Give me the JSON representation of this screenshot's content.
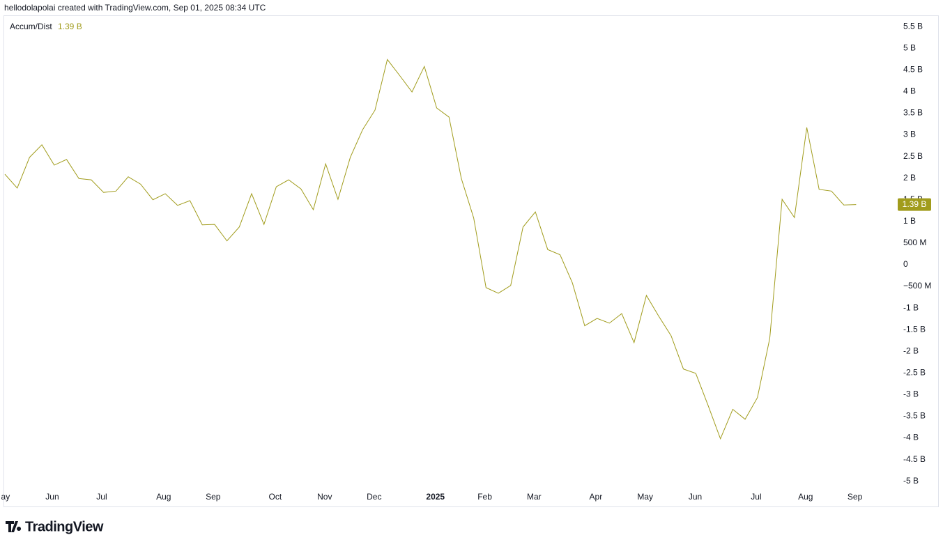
{
  "header": "hellodolapolai created with TradingView.com, Sep 01, 2025 08:34 UTC",
  "footer": {
    "logo": "TradingView"
  },
  "chart_data": {
    "type": "line",
    "series": [
      {
        "name": "Accum/Dist",
        "color": "#a19c1c",
        "values": [
          2.09,
          1.77,
          2.48,
          2.77,
          2.3,
          2.43,
          1.99,
          1.96,
          1.67,
          1.7,
          2.03,
          1.86,
          1.5,
          1.64,
          1.37,
          1.48,
          0.92,
          0.93,
          0.55,
          0.87,
          1.64,
          0.93,
          1.8,
          1.96,
          1.75,
          1.27,
          2.33,
          1.51,
          2.48,
          3.12,
          3.57,
          4.74,
          4.37,
          3.99,
          4.58,
          3.62,
          3.41,
          1.99,
          1.08,
          -0.53,
          -0.66,
          -0.48,
          0.87,
          1.22,
          0.35,
          0.23,
          -0.42,
          -1.41,
          -1.24,
          -1.35,
          -1.13,
          -1.8,
          -0.71,
          -1.19,
          -1.64,
          -2.41,
          -2.51,
          -3.25,
          -4.02,
          -3.34,
          -3.57,
          -3.07,
          -1.7,
          1.51,
          1.09,
          3.17,
          1.74,
          1.7,
          1.38,
          1.39
        ],
        "value_labels": [
          null,
          null,
          null,
          null,
          null,
          null,
          null,
          null,
          null,
          null,
          null,
          null,
          null,
          null,
          null,
          null,
          null,
          null,
          null,
          null,
          null,
          null,
          null,
          null,
          null,
          null,
          null,
          null,
          null,
          null,
          null,
          null,
          null,
          null,
          null,
          null,
          null,
          null,
          null,
          null,
          null,
          null,
          null,
          null,
          null,
          null,
          null,
          null,
          null,
          null,
          null,
          null,
          null,
          null,
          null,
          null,
          null,
          null,
          null,
          null,
          null,
          null,
          null,
          null,
          null,
          null,
          null,
          null,
          null,
          "1.39 B"
        ]
      }
    ],
    "xlim": [
      0,
      72.2
    ],
    "xticks": [
      {
        "value": 0.05,
        "label": "ay"
      },
      {
        "value": 3.84,
        "label": "Jun"
      },
      {
        "value": 7.85,
        "label": "Jul"
      },
      {
        "value": 12.87,
        "label": "Aug"
      },
      {
        "value": 16.88,
        "label": "Sep"
      },
      {
        "value": 21.91,
        "label": "Oct"
      },
      {
        "value": 25.92,
        "label": "Nov"
      },
      {
        "value": 29.93,
        "label": "Dec"
      },
      {
        "value": 34.9,
        "label": "2025"
      },
      {
        "value": 38.9,
        "label": "Feb"
      },
      {
        "value": 42.9,
        "label": "Mar"
      },
      {
        "value": 47.9,
        "label": "Apr"
      },
      {
        "value": 51.9,
        "label": "May"
      },
      {
        "value": 55.96,
        "label": "Jun"
      },
      {
        "value": 60.9,
        "label": "Jul"
      },
      {
        "value": 64.9,
        "label": "Aug"
      },
      {
        "value": 68.9,
        "label": "Sep"
      }
    ],
    "ylim": [
      -5.15,
      5.76
    ],
    "yticks": [
      {
        "value": 5.5,
        "label": "5.5 B"
      },
      {
        "value": 5,
        "label": "5 B"
      },
      {
        "value": 4.5,
        "label": "4.5 B"
      },
      {
        "value": 4,
        "label": "4 B"
      },
      {
        "value": 3.5,
        "label": "3.5 B"
      },
      {
        "value": 3,
        "label": "3 B"
      },
      {
        "value": 2.5,
        "label": "2.5 B"
      },
      {
        "value": 2,
        "label": "2 B"
      },
      {
        "value": 1.5,
        "label": "1.5 B"
      },
      {
        "value": 1,
        "label": "1 B"
      },
      {
        "value": 0.5,
        "label": "500 M"
      },
      0,
      {
        "value": -0.5,
        "label": "−500 M"
      },
      {
        "value": -1,
        "label": "-1 B"
      },
      {
        "value": -1.5,
        "label": "-1.5 B"
      },
      {
        "value": -2,
        "label": "-2 B"
      },
      {
        "value": -2.5,
        "label": "-2.5 B"
      },
      {
        "value": -3,
        "label": "-3 B"
      },
      {
        "value": -3.5,
        "label": "-3.5 B"
      },
      {
        "value": -4,
        "label": "-4 B"
      },
      {
        "value": -4.5,
        "label": "-4.5 B"
      },
      {
        "value": -5,
        "label": "-5 B"
      }
    ],
    "grid": false
  }
}
